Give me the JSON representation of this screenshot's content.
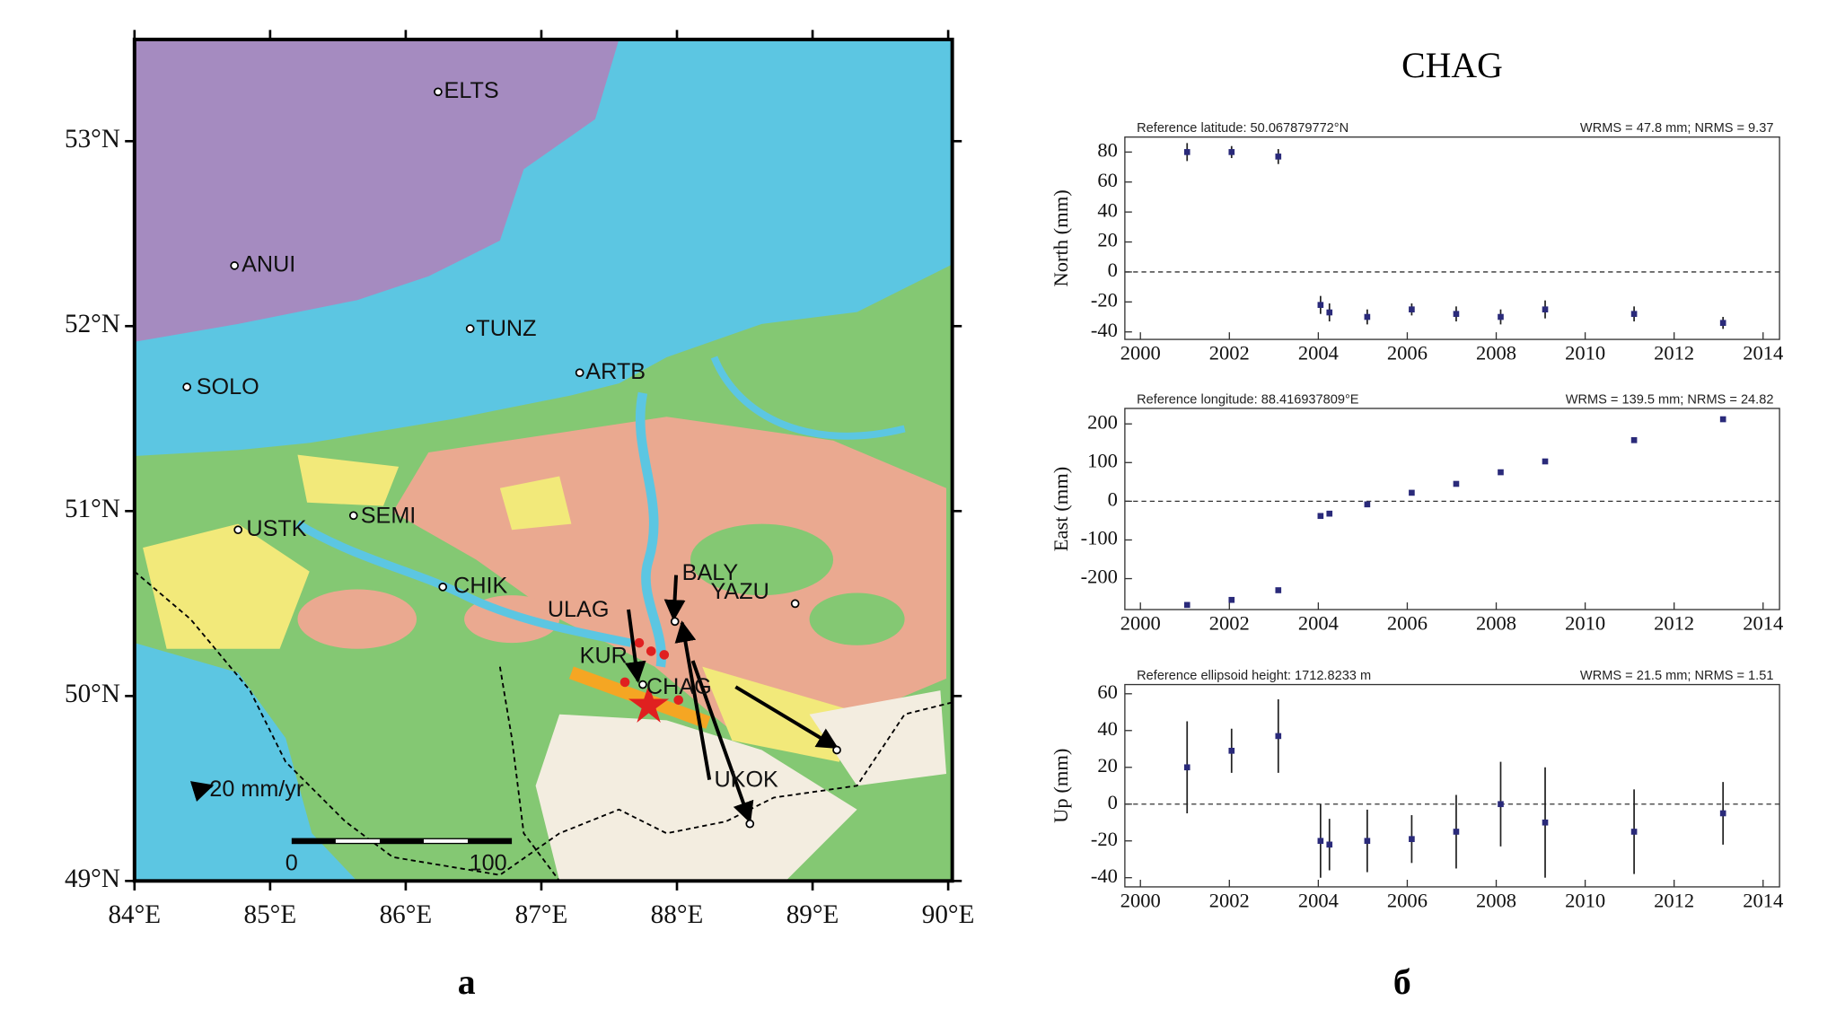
{
  "title": "CHAG",
  "panel_labels": [
    "а",
    "б"
  ],
  "map": {
    "xlim": [
      84,
      90.03
    ],
    "ylim": [
      49,
      53.55
    ],
    "xticks": [
      {
        "value": 84,
        "label": "84°E"
      },
      {
        "value": 85,
        "label": "85°E"
      },
      {
        "value": 86,
        "label": "86°E"
      },
      {
        "value": 87,
        "label": "87°E"
      },
      {
        "value": 88,
        "label": "88°E"
      },
      {
        "value": 89,
        "label": "89°E"
      },
      {
        "value": 90,
        "label": "90°E"
      }
    ],
    "yticks": [
      {
        "value": 49,
        "label": "49°N"
      },
      {
        "value": 50,
        "label": "50°N"
      },
      {
        "value": 51,
        "label": "51°N"
      },
      {
        "value": 52,
        "label": "52°N"
      },
      {
        "value": 53,
        "label": "53°N"
      }
    ],
    "stations": [
      "ELTS",
      "ANUI",
      "TUNZ",
      "ARTB",
      "SOLO",
      "USTK",
      "SEMI",
      "CHIK",
      "ULAG",
      "BALY",
      "YAZU",
      "KUR",
      "CHAG",
      "UKOK"
    ],
    "velocity_scale": "20 mm/yr",
    "scale_bar_labels": [
      0,
      100
    ]
  },
  "chart_data": [
    {
      "type": "scatter",
      "y_label": "North (mm)",
      "annotation_left": "Reference latitude: 50.067879772°N",
      "annotation_right": "WRMS = 47.8 mm; NRMS = 9.37",
      "x": [
        2001.05,
        2002.05,
        2003.1,
        2004.05,
        2004.25,
        2005.1,
        2006.1,
        2007.1,
        2008.1,
        2009.1,
        2011.1,
        2013.1
      ],
      "values": [
        80,
        80,
        77,
        -22,
        -27,
        -30,
        -25,
        -28,
        -30,
        -25,
        -28,
        -34
      ],
      "errors": [
        6,
        4,
        5,
        6,
        6,
        5,
        4,
        5,
        5,
        6,
        5,
        4
      ],
      "color": "#2a2a7a",
      "xlim": [
        1999.65,
        2014.37
      ],
      "xticks": [
        2000,
        2002,
        2004,
        2006,
        2008,
        2010,
        2012,
        2014
      ],
      "ylim": [
        -45,
        90
      ],
      "yticks": [
        -40,
        -20,
        0,
        20,
        40,
        60,
        80
      ]
    },
    {
      "type": "scatter",
      "y_label": "East (mm)",
      "annotation_left": "Reference longitude: 88.416937809°E",
      "annotation_right": "WRMS = 139.5 mm; NRMS = 24.82",
      "x": [
        2001.05,
        2002.05,
        2003.1,
        2004.05,
        2004.25,
        2005.1,
        2006.1,
        2007.1,
        2008.1,
        2009.1,
        2011.1,
        2013.1
      ],
      "values": [
        -268,
        -255,
        -230,
        -38,
        -32,
        -8,
        22,
        45,
        75,
        103,
        158,
        212
      ],
      "errors": [
        6,
        5,
        6,
        6,
        5,
        4,
        5,
        5,
        4,
        4,
        5,
        4
      ],
      "color": "#2a2a7a",
      "xlim": [
        1999.65,
        2014.37
      ],
      "xticks": [
        2000,
        2002,
        2004,
        2006,
        2008,
        2010,
        2012,
        2014
      ],
      "ylim": [
        -280,
        240
      ],
      "yticks": [
        -200,
        -100,
        0,
        100,
        200
      ]
    },
    {
      "type": "scatter",
      "y_label": "Up (mm)",
      "annotation_left": "Reference ellipsoid height: 1712.8233 m",
      "annotation_right": "WRMS = 21.5 mm; NRMS = 1.51",
      "x": [
        2001.05,
        2002.05,
        2003.1,
        2004.05,
        2004.25,
        2005.1,
        2006.1,
        2007.1,
        2008.1,
        2009.1,
        2011.1,
        2013.1
      ],
      "values": [
        20,
        29,
        37,
        -20,
        -22,
        -20,
        -19,
        -15,
        0,
        -10,
        -15,
        -5
      ],
      "errors": [
        25,
        12,
        20,
        20,
        14,
        17,
        13,
        20,
        23,
        30,
        23,
        17
      ],
      "color": "#2a2a7a",
      "xlim": [
        1999.65,
        2014.37
      ],
      "xticks": [
        2000,
        2002,
        2004,
        2006,
        2008,
        2010,
        2012,
        2014
      ],
      "ylim": [
        -45,
        65
      ],
      "yticks": [
        -40,
        -20,
        0,
        20,
        40,
        60
      ]
    }
  ]
}
